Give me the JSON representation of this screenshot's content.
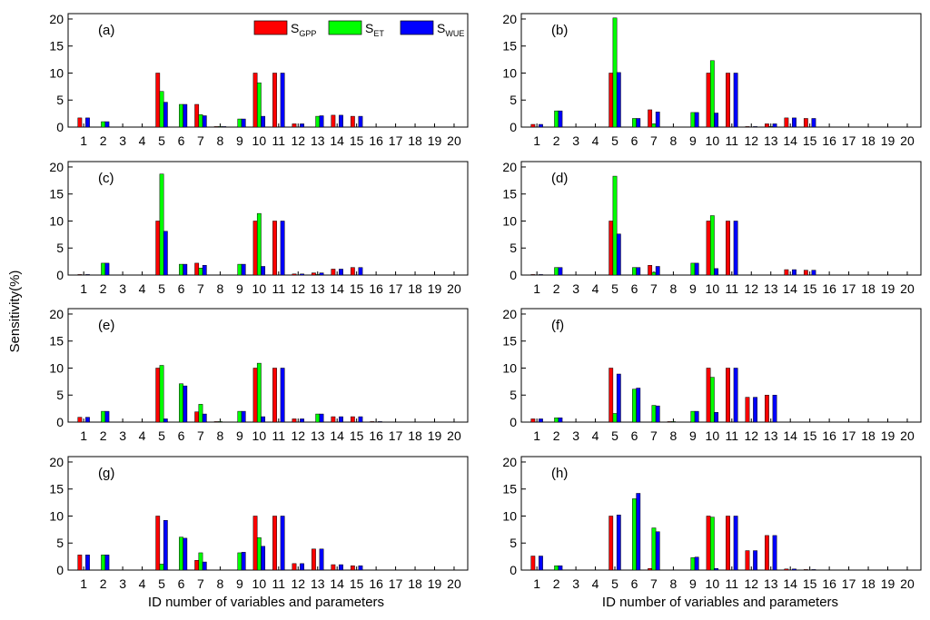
{
  "figure": {
    "ylabel": "Sensitivity(%)",
    "xlabel_left": "ID number of variables and parameters",
    "xlabel_right": "ID number of variables and parameters"
  },
  "legend": {
    "items": [
      {
        "main": "S",
        "sub": "GPP",
        "color": "#ff0000"
      },
      {
        "main": "S",
        "sub": "ET",
        "color": "#00ff00"
      },
      {
        "main": "S",
        "sub": "WUE",
        "color": "#0000ff"
      }
    ]
  },
  "chart_data": [
    {
      "type": "bar",
      "label": "(a)",
      "categories": [
        "1",
        "2",
        "3",
        "4",
        "5",
        "6",
        "7",
        "8",
        "9",
        "10",
        "11",
        "12",
        "13",
        "14",
        "15",
        "16",
        "17",
        "18",
        "19",
        "20"
      ],
      "ylim": [
        0,
        21
      ],
      "yticks": [
        0,
        5,
        10,
        15,
        20
      ],
      "series": [
        {
          "name": "SGPP",
          "values": [
            1.7,
            0,
            0,
            0,
            10,
            0,
            4.2,
            0.1,
            0,
            10,
            10,
            0.6,
            0,
            2.2,
            2,
            0,
            0,
            0,
            0,
            0
          ]
        },
        {
          "name": "SET",
          "values": [
            0,
            1,
            0,
            0,
            6.6,
            4.2,
            2.3,
            0.1,
            1.5,
            8.2,
            0,
            0,
            2,
            0,
            0,
            0,
            0,
            0,
            0,
            0
          ]
        },
        {
          "name": "SWUE",
          "values": [
            1.7,
            1,
            0,
            0,
            4.6,
            4.2,
            2.1,
            0.1,
            1.5,
            2,
            10,
            0.6,
            2.1,
            2.2,
            2,
            0,
            0,
            0,
            0,
            0
          ]
        }
      ]
    },
    {
      "type": "bar",
      "label": "(b)",
      "categories": [
        "1",
        "2",
        "3",
        "4",
        "5",
        "6",
        "7",
        "8",
        "9",
        "10",
        "11",
        "12",
        "13",
        "14",
        "15",
        "16",
        "17",
        "18",
        "19",
        "20"
      ],
      "ylim": [
        0,
        21
      ],
      "yticks": [
        0,
        5,
        10,
        15,
        20
      ],
      "series": [
        {
          "name": "SGPP",
          "values": [
            0.5,
            0,
            0,
            0,
            10,
            0,
            3.2,
            0,
            0,
            10,
            10,
            0.1,
            0.6,
            1.7,
            1.6,
            0,
            0,
            0,
            0,
            0
          ]
        },
        {
          "name": "SET",
          "values": [
            0,
            3,
            0,
            0,
            20.2,
            1.6,
            0.6,
            0,
            2.7,
            12.3,
            0,
            0,
            0.1,
            0,
            0,
            0,
            0,
            0,
            0,
            0
          ]
        },
        {
          "name": "SWUE",
          "values": [
            0.5,
            3,
            0,
            0,
            10.1,
            1.6,
            2.8,
            0,
            2.7,
            2.6,
            10,
            0.1,
            0.6,
            1.7,
            1.6,
            0,
            0,
            0,
            0,
            0
          ]
        }
      ]
    },
    {
      "type": "bar",
      "label": "(c)",
      "categories": [
        "1",
        "2",
        "3",
        "4",
        "5",
        "6",
        "7",
        "8",
        "9",
        "10",
        "11",
        "12",
        "13",
        "14",
        "15",
        "16",
        "17",
        "18",
        "19",
        "20"
      ],
      "ylim": [
        0,
        21
      ],
      "yticks": [
        0,
        5,
        10,
        15,
        20
      ],
      "series": [
        {
          "name": "SGPP",
          "values": [
            0.1,
            0,
            0,
            0,
            10,
            0,
            2.2,
            0,
            0,
            10,
            10,
            0.2,
            0.4,
            1.1,
            1.4,
            0,
            0,
            0,
            0,
            0
          ]
        },
        {
          "name": "SET",
          "values": [
            0,
            2.2,
            0,
            0,
            18.7,
            2,
            1.3,
            0,
            2,
            11.4,
            0,
            0,
            0.1,
            0,
            0,
            0,
            0,
            0,
            0,
            0
          ]
        },
        {
          "name": "SWUE",
          "values": [
            0.1,
            2.2,
            0,
            0,
            8.1,
            2,
            1.8,
            0,
            2,
            1.6,
            10,
            0.2,
            0.4,
            1.1,
            1.4,
            0,
            0,
            0,
            0,
            0
          ]
        }
      ]
    },
    {
      "type": "bar",
      "label": "(d)",
      "categories": [
        "1",
        "2",
        "3",
        "4",
        "5",
        "6",
        "7",
        "8",
        "9",
        "10",
        "11",
        "12",
        "13",
        "14",
        "15",
        "16",
        "17",
        "18",
        "19",
        "20"
      ],
      "ylim": [
        0,
        21
      ],
      "yticks": [
        0,
        5,
        10,
        15,
        20
      ],
      "series": [
        {
          "name": "SGPP",
          "values": [
            0.1,
            0,
            0,
            0,
            10,
            0,
            1.8,
            0,
            0,
            10,
            10,
            0,
            0,
            1,
            0.9,
            0,
            0,
            0,
            0,
            0
          ]
        },
        {
          "name": "SET",
          "values": [
            0,
            1.4,
            0,
            0,
            18.3,
            1.4,
            0.5,
            0,
            2.2,
            11,
            0,
            0,
            0,
            0,
            0,
            0,
            0,
            0,
            0,
            0
          ]
        },
        {
          "name": "SWUE",
          "values": [
            0.1,
            1.4,
            0,
            0,
            7.6,
            1.4,
            1.6,
            0,
            2.2,
            1.2,
            10,
            0,
            0,
            1,
            0.9,
            0,
            0,
            0,
            0,
            0
          ]
        }
      ]
    },
    {
      "type": "bar",
      "label": "(e)",
      "categories": [
        "1",
        "2",
        "3",
        "4",
        "5",
        "6",
        "7",
        "8",
        "9",
        "10",
        "11",
        "12",
        "13",
        "14",
        "15",
        "16",
        "17",
        "18",
        "19",
        "20"
      ],
      "ylim": [
        0,
        21
      ],
      "yticks": [
        0,
        5,
        10,
        15,
        20
      ],
      "series": [
        {
          "name": "SGPP",
          "values": [
            0.9,
            0,
            0,
            0,
            10,
            0,
            1.9,
            0.1,
            0,
            10,
            10,
            0.6,
            0,
            1,
            1,
            0.1,
            0,
            0,
            0,
            0
          ]
        },
        {
          "name": "SET",
          "values": [
            0,
            2,
            0,
            0,
            10.5,
            7.1,
            3.3,
            0.1,
            2,
            10.9,
            0,
            0,
            1.5,
            0,
            0,
            0,
            0,
            0,
            0,
            0
          ]
        },
        {
          "name": "SWUE",
          "values": [
            0.9,
            2,
            0,
            0,
            0.6,
            6.7,
            1.5,
            0,
            2,
            1,
            10,
            0.6,
            1.5,
            1,
            1,
            0.1,
            0,
            0,
            0,
            0
          ]
        }
      ]
    },
    {
      "type": "bar",
      "label": "(f)",
      "categories": [
        "1",
        "2",
        "3",
        "4",
        "5",
        "6",
        "7",
        "8",
        "9",
        "10",
        "11",
        "12",
        "13",
        "14",
        "15",
        "16",
        "17",
        "18",
        "19",
        "20"
      ],
      "ylim": [
        0,
        21
      ],
      "yticks": [
        0,
        5,
        10,
        15,
        20
      ],
      "series": [
        {
          "name": "SGPP",
          "values": [
            0.6,
            0,
            0,
            0,
            10,
            0,
            0,
            0.1,
            0,
            10,
            10,
            4.6,
            5,
            0,
            0,
            0,
            0,
            0,
            0,
            0
          ]
        },
        {
          "name": "SET",
          "values": [
            0,
            0.8,
            0,
            0,
            1.6,
            6.1,
            3.1,
            0.1,
            2,
            8.3,
            0,
            0,
            0,
            0,
            0,
            0,
            0,
            0,
            0,
            0
          ]
        },
        {
          "name": "SWUE",
          "values": [
            0.6,
            0.8,
            0,
            0,
            8.9,
            6.3,
            3,
            0,
            2,
            1.8,
            10,
            4.6,
            5,
            0,
            0,
            0,
            0,
            0,
            0,
            0
          ]
        }
      ]
    },
    {
      "type": "bar",
      "label": "(g)",
      "categories": [
        "1",
        "2",
        "3",
        "4",
        "5",
        "6",
        "7",
        "8",
        "9",
        "10",
        "11",
        "12",
        "13",
        "14",
        "15",
        "16",
        "17",
        "18",
        "19",
        "20"
      ],
      "ylim": [
        0,
        21
      ],
      "yticks": [
        0,
        5,
        10,
        15,
        20
      ],
      "series": [
        {
          "name": "SGPP",
          "values": [
            2.8,
            0,
            0,
            0,
            10,
            0,
            1.8,
            0,
            0,
            10,
            10,
            1.2,
            3.9,
            1,
            0.8,
            0,
            0,
            0,
            0,
            0
          ]
        },
        {
          "name": "SET",
          "values": [
            0,
            2.8,
            0,
            0,
            1.1,
            6.1,
            3.2,
            0,
            3.2,
            6,
            0,
            0,
            0,
            0,
            0,
            0,
            0,
            0,
            0,
            0
          ]
        },
        {
          "name": "SWUE",
          "values": [
            2.8,
            2.8,
            0,
            0,
            9.2,
            5.9,
            1.5,
            0,
            3.3,
            4.4,
            10,
            1.2,
            3.9,
            1,
            0.8,
            0,
            0,
            0,
            0,
            0
          ]
        }
      ]
    },
    {
      "type": "bar",
      "label": "(h)",
      "categories": [
        "1",
        "2",
        "3",
        "4",
        "5",
        "6",
        "7",
        "8",
        "9",
        "10",
        "11",
        "12",
        "13",
        "14",
        "15",
        "16",
        "17",
        "18",
        "19",
        "20"
      ],
      "ylim": [
        0,
        21
      ],
      "yticks": [
        0,
        5,
        10,
        15,
        20
      ],
      "series": [
        {
          "name": "SGPP",
          "values": [
            2.6,
            0,
            0,
            0,
            10,
            0,
            0.3,
            0,
            0,
            10,
            10,
            3.6,
            6.4,
            0.2,
            0.1,
            0,
            0,
            0,
            0,
            0
          ]
        },
        {
          "name": "SET",
          "values": [
            0,
            0.8,
            0,
            0,
            0,
            13.2,
            7.8,
            0,
            2.3,
            9.8,
            0,
            0,
            0,
            0,
            0,
            0,
            0,
            0,
            0,
            0
          ]
        },
        {
          "name": "SWUE",
          "values": [
            2.6,
            0.8,
            0,
            0,
            10.2,
            14.2,
            7.1,
            0,
            2.4,
            0.3,
            10,
            3.6,
            6.4,
            0.2,
            0.1,
            0,
            0,
            0,
            0,
            0
          ]
        }
      ]
    }
  ]
}
